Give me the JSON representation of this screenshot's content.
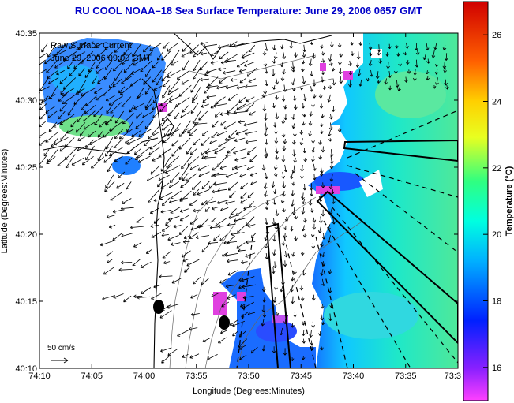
{
  "title": "RU COOL  NOAA–18  Sea Surface Temperature:  June 29, 2006 0657 GMT",
  "overlay": {
    "label1": "Raw Surface Current",
    "label2": "June 29, 2006 09:00 GMT",
    "scale_label": "50 cm/s"
  },
  "axes": {
    "xlabel": "Longitude (Degrees:Minutes)",
    "ylabel": "Latitude (Degrees:Minutes)",
    "xticks": [
      "74:10",
      "74:05",
      "74:00",
      "73:55",
      "73:50",
      "73:45",
      "73:40",
      "73:35",
      "73:3"
    ],
    "yticks": [
      "40:35",
      "40:30",
      "40:25",
      "40:20",
      "40:15",
      "40:10"
    ]
  },
  "colorbar": {
    "label": "Temperature (°C)",
    "ticks": [
      "26",
      "24",
      "22",
      "20",
      "18",
      "16"
    ],
    "range": [
      15,
      27
    ]
  },
  "colors": {
    "title": "#0000c8",
    "land": "#ffffff",
    "coast": "#000000"
  }
}
